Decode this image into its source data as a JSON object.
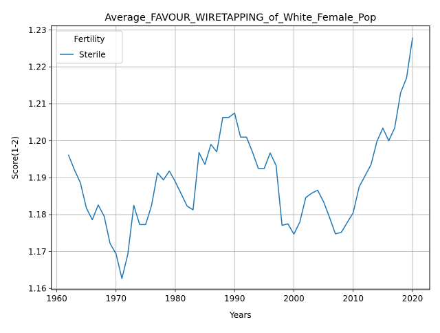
{
  "colors": {
    "series": "#1f77b4",
    "grid": "#b0b0b0",
    "axis": "#000000",
    "legend_border": "#cccccc"
  },
  "chart_data": {
    "type": "line",
    "title": "Average_FAVOUR_WIRETAPPING_of_White_Female_Pop",
    "xlabel": "Years",
    "ylabel": "Score(1-2)",
    "xlim": [
      1959.1,
      2022.9
    ],
    "ylim": [
      1.1597,
      1.2311
    ],
    "xticks": [
      1960,
      1970,
      1980,
      1990,
      2000,
      2010,
      2020
    ],
    "xtick_labels": [
      "1960",
      "1970",
      "1980",
      "1990",
      "2000",
      "2010",
      "2020"
    ],
    "yticks": [
      1.16,
      1.17,
      1.18,
      1.19,
      1.2,
      1.21,
      1.22,
      1.23
    ],
    "ytick_labels": [
      "1.16",
      "1.17",
      "1.18",
      "1.19",
      "1.20",
      "1.21",
      "1.22",
      "1.23"
    ],
    "grid": true,
    "legend": {
      "title": "Fertility",
      "placement": "top-left"
    },
    "series": [
      {
        "name": "Sterile",
        "x": [
          1962,
          1963,
          1964,
          1965,
          1966,
          1967,
          1968,
          1969,
          1970,
          1971,
          1972,
          1973,
          1974,
          1975,
          1976,
          1977,
          1978,
          1979,
          1980,
          1981,
          1982,
          1983,
          1984,
          1985,
          1986,
          1987,
          1988,
          1989,
          1990,
          1991,
          1992,
          1993,
          1994,
          1995,
          1996,
          1997,
          1998,
          1999,
          2000,
          2001,
          2002,
          2003,
          2004,
          2005,
          2006,
          2007,
          2008,
          2009,
          2010,
          2011,
          2012,
          2013,
          2014,
          2015,
          2016,
          2017,
          2018,
          2019,
          2020
        ],
        "y": [
          1.1961,
          1.1921,
          1.1886,
          1.1818,
          1.1786,
          1.1826,
          1.1796,
          1.1722,
          1.1694,
          1.1627,
          1.1693,
          1.1825,
          1.1773,
          1.1773,
          1.1825,
          1.1913,
          1.1894,
          1.1918,
          1.1889,
          1.1856,
          1.1823,
          1.1813,
          1.1968,
          1.1936,
          1.199,
          1.197,
          1.2063,
          1.2063,
          1.2075,
          1.201,
          1.201,
          1.197,
          1.1925,
          1.1925,
          1.1967,
          1.1933,
          1.1771,
          1.1775,
          1.1747,
          1.178,
          1.1846,
          1.1858,
          1.1866,
          1.1835,
          1.1793,
          1.1748,
          1.1752,
          1.1779,
          1.1805,
          1.1875,
          1.1905,
          1.1935,
          1.1998,
          1.2034,
          1.2,
          1.2035,
          1.213,
          1.217,
          1.2278
        ]
      }
    ]
  }
}
